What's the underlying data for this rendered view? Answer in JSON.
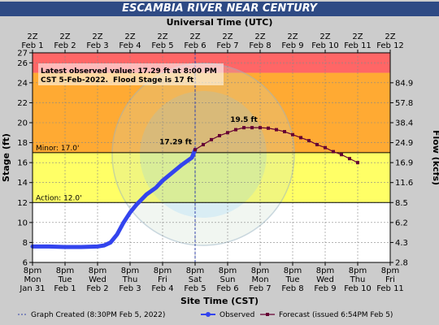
{
  "title": "ESCAMBIA RIVER NEAR CENTURY",
  "chart_data": {
    "type": "line",
    "top_axis_title": "Universal Time (UTC)",
    "bottom_axis_title": "Site Time (CST)",
    "left_axis_title": "Stage (ft)",
    "right_axis_title": "Flow (kcfs)",
    "x_range_days": [
      "Jan 31 20:00",
      "Feb 11 20:00"
    ],
    "ylim": [
      6,
      27
    ],
    "y_ticks": [
      6,
      8,
      10,
      12,
      14,
      16,
      18,
      20,
      22,
      24,
      26,
      27
    ],
    "bottom_ticks": [
      {
        "time": "8pm",
        "day": "Mon",
        "date": "Jan 31"
      },
      {
        "time": "8pm",
        "day": "Tue",
        "date": "Feb 1"
      },
      {
        "time": "8pm",
        "day": "Wed",
        "date": "Feb 2"
      },
      {
        "time": "8pm",
        "day": "Thu",
        "date": "Feb 3"
      },
      {
        "time": "8pm",
        "day": "Fri",
        "date": "Feb 4"
      },
      {
        "time": "8pm",
        "day": "Sat",
        "date": "Feb 5"
      },
      {
        "time": "8pm",
        "day": "Sun",
        "date": "Feb 6"
      },
      {
        "time": "8pm",
        "day": "Mon",
        "date": "Feb 7"
      },
      {
        "time": "8pm",
        "day": "Tue",
        "date": "Feb 8"
      },
      {
        "time": "8pm",
        "day": "Wed",
        "date": "Feb 9"
      },
      {
        "time": "8pm",
        "day": "Thu",
        "date": "Feb 10"
      },
      {
        "time": "8pm",
        "day": "Fri",
        "date": "Feb 11"
      }
    ],
    "top_ticks": [
      {
        "time": "2Z",
        "date": "Feb 1"
      },
      {
        "time": "2Z",
        "date": "Feb 2"
      },
      {
        "time": "2Z",
        "date": "Feb 3"
      },
      {
        "time": "2Z",
        "date": "Feb 4"
      },
      {
        "time": "2Z",
        "date": "Feb 5"
      },
      {
        "time": "2Z",
        "date": "Feb 6"
      },
      {
        "time": "2Z",
        "date": "Feb 7"
      },
      {
        "time": "2Z",
        "date": "Feb 8"
      },
      {
        "time": "2Z",
        "date": "Feb 9"
      },
      {
        "time": "2Z",
        "date": "Feb 10"
      },
      {
        "time": "2Z",
        "date": "Feb 11"
      },
      {
        "time": "2Z",
        "date": "Feb 12"
      }
    ],
    "flow_ticks": [
      {
        "stage": 6,
        "label": "2.8"
      },
      {
        "stage": 8,
        "label": "4.3"
      },
      {
        "stage": 10,
        "label": "6.2"
      },
      {
        "stage": 12,
        "label": "8.5"
      },
      {
        "stage": 14,
        "label": "11.6"
      },
      {
        "stage": 16,
        "label": "16.9"
      },
      {
        "stage": 18,
        "label": "24.9"
      },
      {
        "stage": 20,
        "label": "38.4"
      },
      {
        "stage": 22,
        "label": "57.8"
      },
      {
        "stage": 24,
        "label": "84.9"
      }
    ],
    "bands": [
      {
        "from": 6,
        "to": 12,
        "color": "#ffffff"
      },
      {
        "from": 12,
        "to": 17,
        "color": "#ffff66"
      },
      {
        "from": 17,
        "to": 25,
        "color": "#ffaa33"
      },
      {
        "from": 25,
        "to": 27,
        "color": "#ff6666"
      }
    ],
    "thresholds": [
      {
        "label": "Minor: 17.0'",
        "value": 17
      },
      {
        "label": "Action: 12.0'",
        "value": 12
      }
    ],
    "series": [
      {
        "name": "Observed",
        "color": "#3344ee",
        "points": [
          [
            0,
            7.6
          ],
          [
            0.5,
            7.6
          ],
          [
            1,
            7.55
          ],
          [
            1.5,
            7.55
          ],
          [
            2,
            7.6
          ],
          [
            2.2,
            7.7
          ],
          [
            2.4,
            8.0
          ],
          [
            2.6,
            8.8
          ],
          [
            2.8,
            10.0
          ],
          [
            3,
            11.0
          ],
          [
            3.2,
            11.8
          ],
          [
            3.5,
            12.8
          ],
          [
            3.8,
            13.5
          ],
          [
            4,
            14.2
          ],
          [
            4.3,
            15.0
          ],
          [
            4.6,
            15.8
          ],
          [
            4.9,
            16.5
          ],
          [
            5,
            17.29
          ]
        ]
      },
      {
        "name": "Forecast (issued 6:54PM Feb 5)",
        "color": "#660033",
        "points": [
          [
            5,
            17.29
          ],
          [
            5.25,
            17.8
          ],
          [
            5.5,
            18.3
          ],
          [
            5.75,
            18.7
          ],
          [
            6,
            19.0
          ],
          [
            6.25,
            19.3
          ],
          [
            6.5,
            19.5
          ],
          [
            6.75,
            19.5
          ],
          [
            7,
            19.5
          ],
          [
            7.25,
            19.45
          ],
          [
            7.5,
            19.3
          ],
          [
            7.75,
            19.1
          ],
          [
            8,
            18.8
          ],
          [
            8.25,
            18.5
          ],
          [
            8.5,
            18.2
          ],
          [
            8.75,
            17.8
          ],
          [
            9,
            17.5
          ],
          [
            9.25,
            17.1
          ],
          [
            9.5,
            16.8
          ],
          [
            9.75,
            16.4
          ],
          [
            10,
            16.0
          ]
        ]
      }
    ],
    "annotations": {
      "latest_value": "17.29 ft",
      "crest": "19.5 ft",
      "observed_line1": "Latest observed value: 17.29 ft at 8:00 PM",
      "observed_line2": "CST 5-Feb-2022.",
      "flood_stage": "Flood Stage is 17 ft"
    },
    "legend": {
      "graph_created": "Graph Created (8:30PM Feb 5, 2022)",
      "observed": "Observed",
      "forecast": "Forecast (issued 6:54PM Feb 5)"
    }
  }
}
